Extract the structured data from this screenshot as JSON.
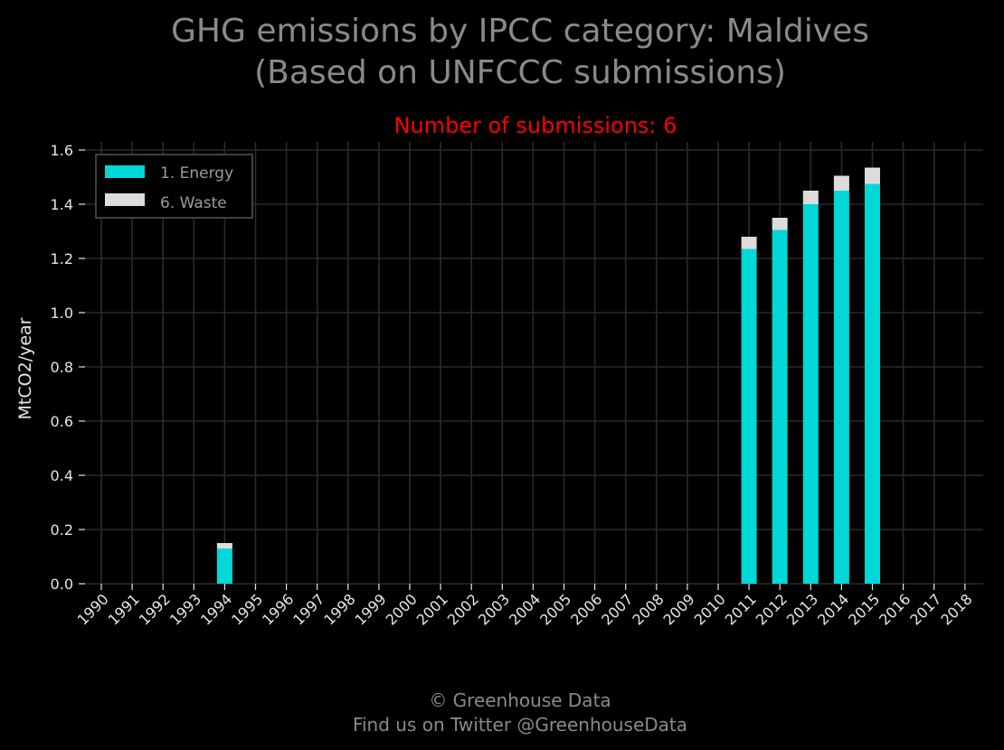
{
  "chart_data": {
    "type": "bar",
    "stacked": true,
    "title": "GHG emissions by IPCC category: Maldives",
    "title_line2": "(Based on UNFCCC submissions)",
    "subtitle": "Number of submissions: 6",
    "xlabel": "",
    "ylabel": "MtCO2/year",
    "ylim": [
      0,
      1.6
    ],
    "yticks": [
      "0.0",
      "0.2",
      "0.4",
      "0.6",
      "0.8",
      "1.0",
      "1.2",
      "1.4",
      "1.6"
    ],
    "grid": true,
    "legend_position": "top-left",
    "categories": [
      "1990",
      "1991",
      "1992",
      "1993",
      "1994",
      "1995",
      "1996",
      "1997",
      "1998",
      "1999",
      "2000",
      "2001",
      "2002",
      "2003",
      "2004",
      "2005",
      "2006",
      "2007",
      "2008",
      "2009",
      "2010",
      "2011",
      "2012",
      "2013",
      "2014",
      "2015",
      "2016",
      "2017",
      "2018"
    ],
    "series": [
      {
        "name": "1. Energy",
        "color": "#00d7d7",
        "values": [
          null,
          null,
          null,
          null,
          0.13,
          null,
          null,
          null,
          null,
          null,
          null,
          null,
          null,
          null,
          null,
          null,
          null,
          null,
          null,
          null,
          null,
          1.235,
          1.305,
          1.4,
          1.45,
          1.475,
          null,
          null,
          null
        ]
      },
      {
        "name": "6. Waste",
        "color": "#dcdcdc",
        "values": [
          null,
          null,
          null,
          null,
          0.02,
          null,
          null,
          null,
          null,
          null,
          null,
          null,
          null,
          null,
          null,
          null,
          null,
          null,
          null,
          null,
          null,
          0.045,
          0.045,
          0.05,
          0.055,
          0.06,
          null,
          null,
          null
        ]
      }
    ]
  },
  "footer": {
    "line1": "© Greenhouse Data",
    "line2": "Find us on Twitter @GreenhouseData"
  }
}
